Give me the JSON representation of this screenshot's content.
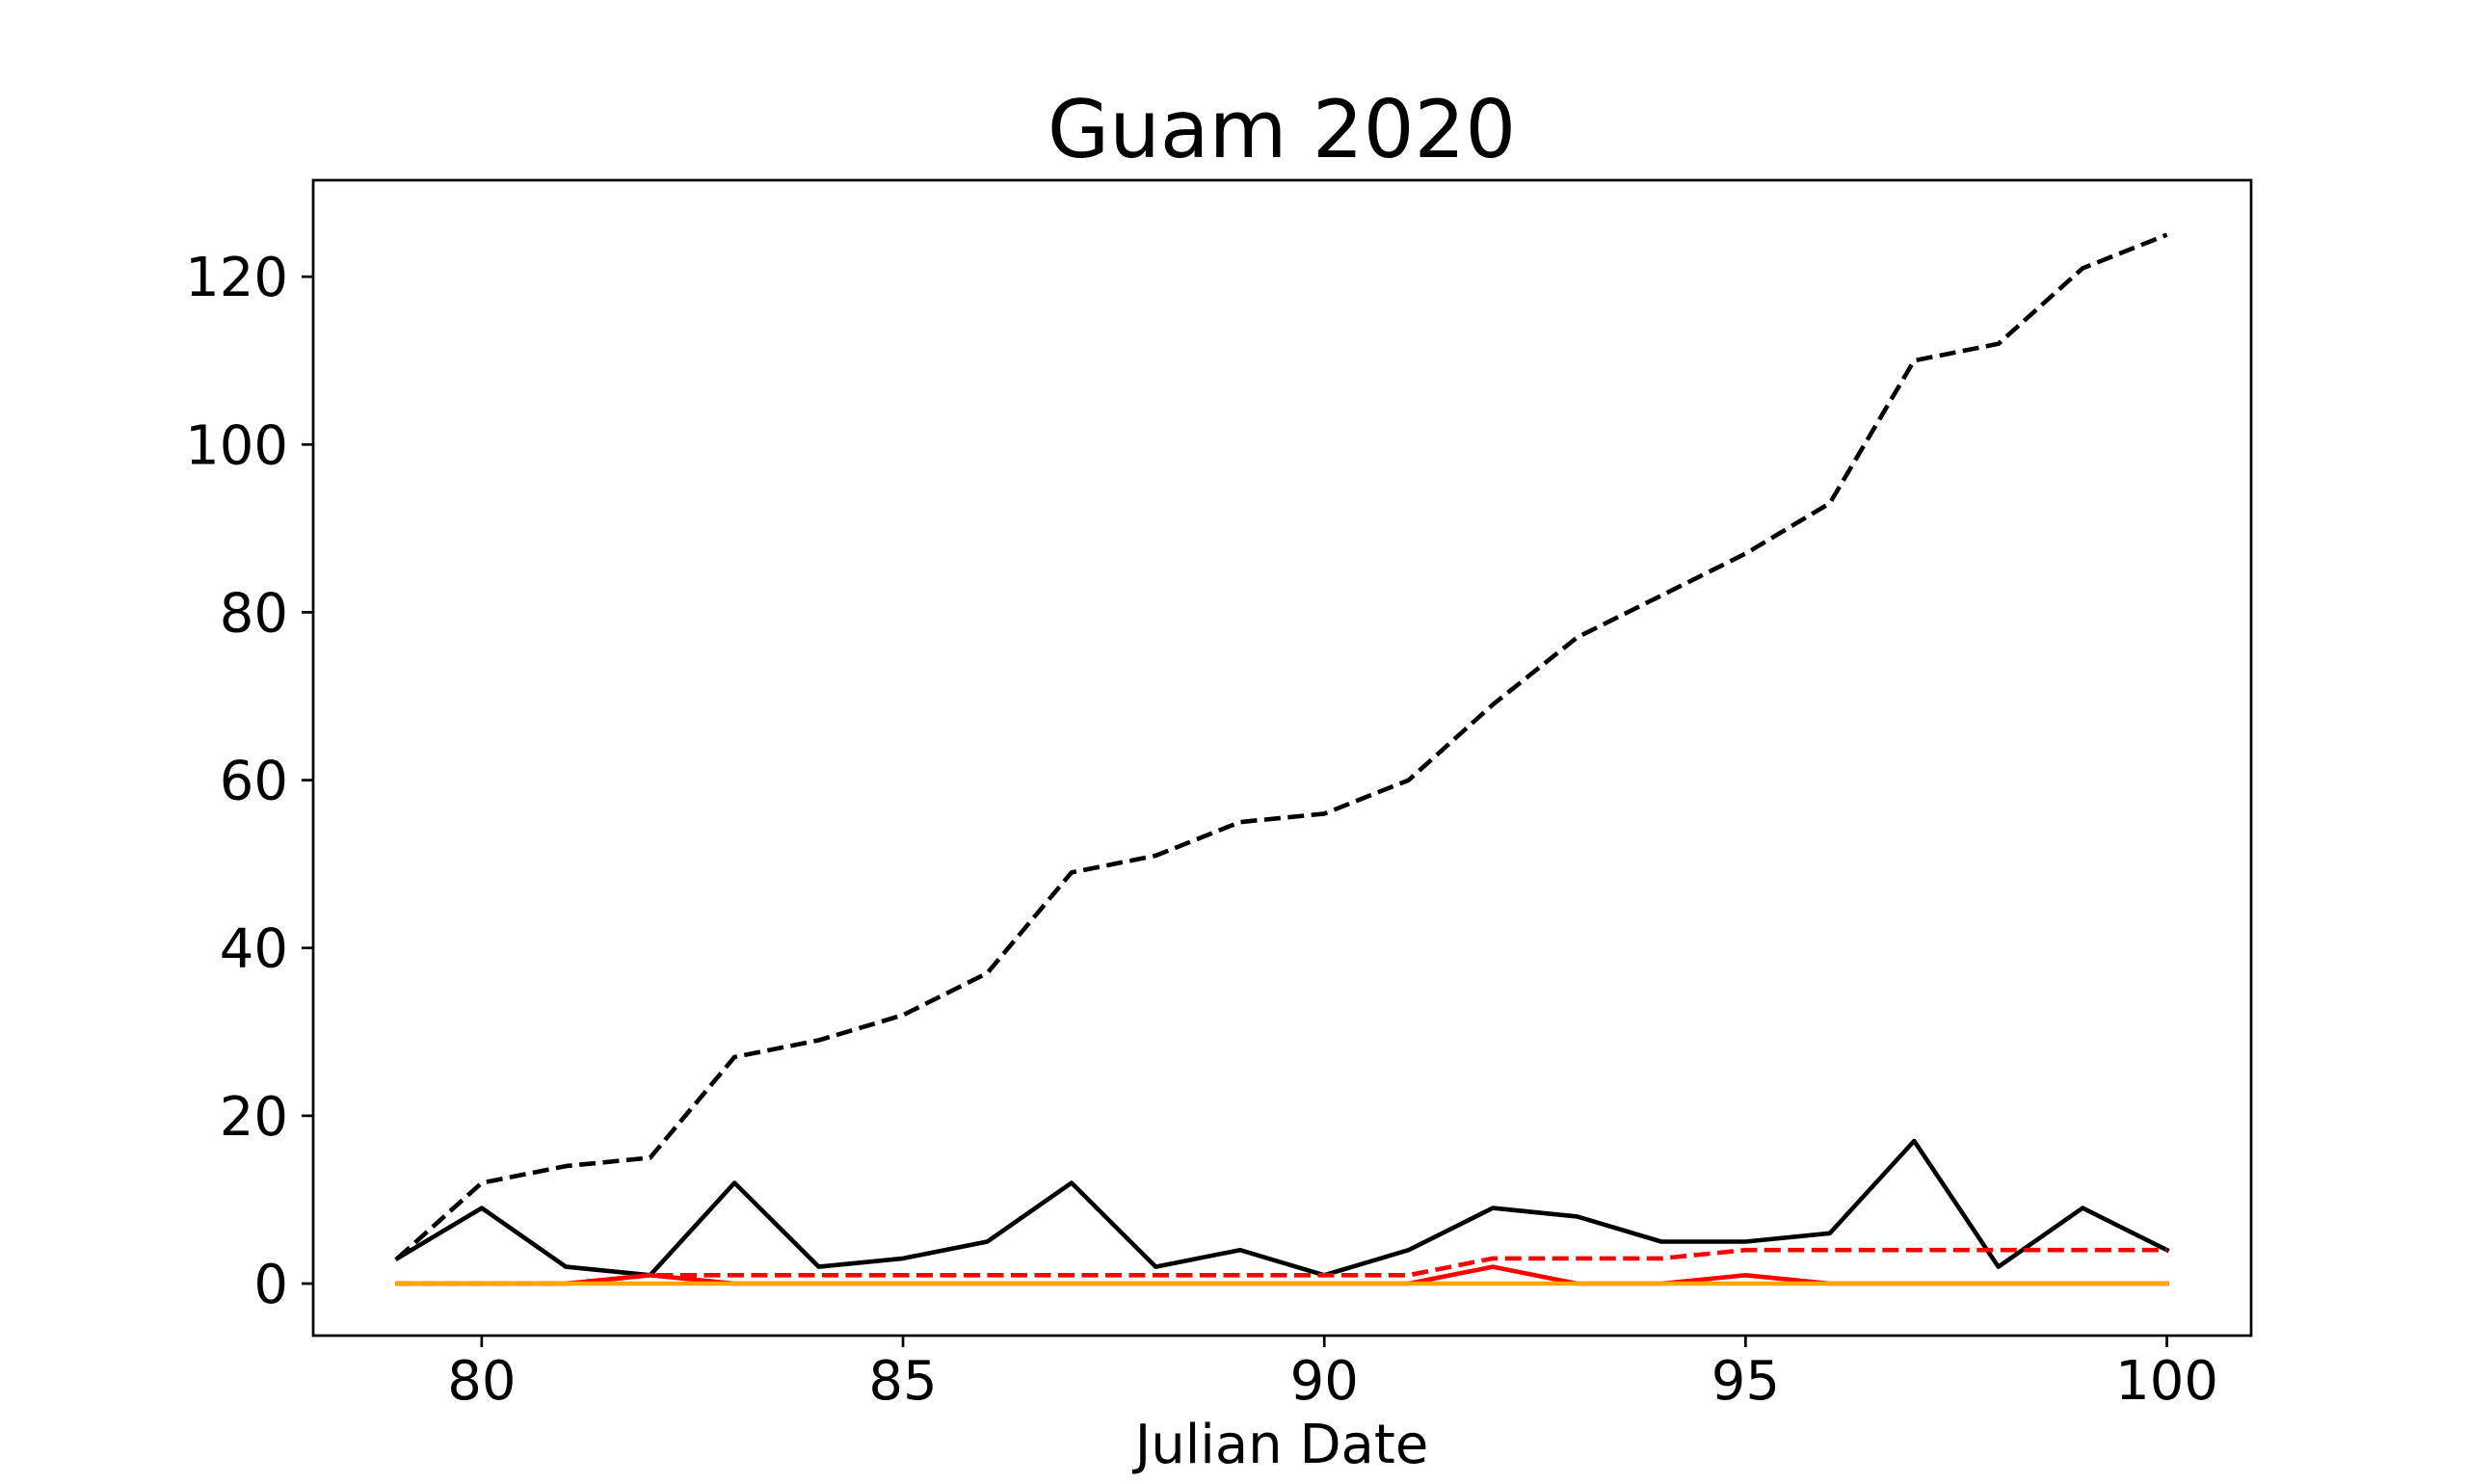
{
  "chart_data": {
    "type": "line",
    "title": "Guam 2020",
    "xlabel": "Julian Date",
    "ylabel": "",
    "xlim": [
      78,
      101
    ],
    "ylim": [
      -6.2,
      131.5
    ],
    "xticks": [
      80,
      85,
      90,
      95,
      100
    ],
    "yticks": [
      0,
      20,
      40,
      60,
      80,
      100,
      120
    ],
    "grid": false,
    "x": [
      79,
      80,
      81,
      82,
      83,
      84,
      85,
      86,
      87,
      88,
      89,
      90,
      91,
      92,
      93,
      94,
      95,
      96,
      97,
      98,
      99,
      100
    ],
    "series": [
      {
        "color": "#000000",
        "linestyle": "dashed",
        "values": [
          3,
          12,
          14,
          15,
          27,
          29,
          32,
          37,
          49,
          51,
          55,
          56,
          60,
          69,
          77,
          82,
          87,
          93,
          110,
          112,
          121,
          125
        ]
      },
      {
        "color": "#000000",
        "linestyle": "solid",
        "values": [
          3,
          9,
          2,
          1,
          12,
          2,
          3,
          5,
          12,
          2,
          4,
          1,
          4,
          9,
          8,
          5,
          5,
          6,
          17,
          2,
          9,
          4
        ]
      },
      {
        "color": "#ff0000",
        "linestyle": "dashed",
        "values": [
          0,
          0,
          0,
          1,
          1,
          1,
          1,
          1,
          1,
          1,
          1,
          1,
          1,
          3,
          3,
          3,
          4,
          4,
          4,
          4,
          4,
          4
        ]
      },
      {
        "color": "#ff0000",
        "linestyle": "solid",
        "values": [
          0,
          0,
          0,
          1,
          0,
          0,
          0,
          0,
          0,
          0,
          0,
          0,
          0,
          2,
          0,
          0,
          1,
          0,
          0,
          0,
          0,
          0
        ]
      },
      {
        "color": "#ffa500",
        "linestyle": "solid",
        "values": [
          0,
          0,
          0,
          0,
          0,
          0,
          0,
          0,
          0,
          0,
          0,
          0,
          0,
          0,
          0,
          0,
          0,
          0,
          0,
          0,
          0,
          0
        ]
      }
    ]
  }
}
